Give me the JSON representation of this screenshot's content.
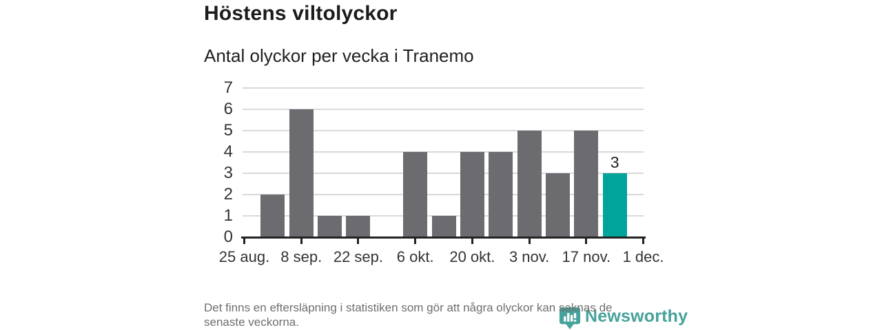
{
  "header": {
    "title": "Höstens viltolyckor",
    "subtitle": "Antal olyckor per vecka i Tranemo"
  },
  "chart_data": {
    "type": "bar",
    "title": "Höstens viltolyckor",
    "subtitle": "Antal olyckor per vecka i Tranemo",
    "xlabel": "",
    "ylabel": "",
    "categories": [
      "25 aug.",
      "1 sep.",
      "8 sep.",
      "15 sep.",
      "22 sep.",
      "29 sep.",
      "6 okt.",
      "13 okt.",
      "20 okt.",
      "27 okt.",
      "3 nov.",
      "10 nov.",
      "17 nov.",
      "24 nov."
    ],
    "values": [
      0,
      2,
      6,
      1,
      1,
      0,
      4,
      1,
      4,
      4,
      5,
      3,
      5,
      3
    ],
    "x_tick_labels": [
      "25 aug.",
      "8 sep.",
      "22 sep.",
      "6 okt.",
      "20 okt.",
      "3 nov.",
      "17 nov.",
      "1 dec."
    ],
    "tick_every": 2,
    "ylim": [
      0,
      7
    ],
    "y_ticks": [
      0,
      1,
      2,
      3,
      4,
      5,
      6,
      7
    ],
    "grid": true,
    "legend": "none",
    "highlight": {
      "index": 13,
      "label": "3"
    },
    "colors": {
      "bar": "#6b6b70",
      "highlight": "#00a49b",
      "grid": "#d9d9d9",
      "axis": "#222222",
      "tick_text": "#333333"
    }
  },
  "footnote": {
    "lines": [
      "Det finns en eftersläpning i statistiken som gör att några olyckor kan saknas de",
      "senaste veckorna."
    ]
  },
  "branding": {
    "name": "Newsworthy",
    "color": "#47a29b"
  }
}
